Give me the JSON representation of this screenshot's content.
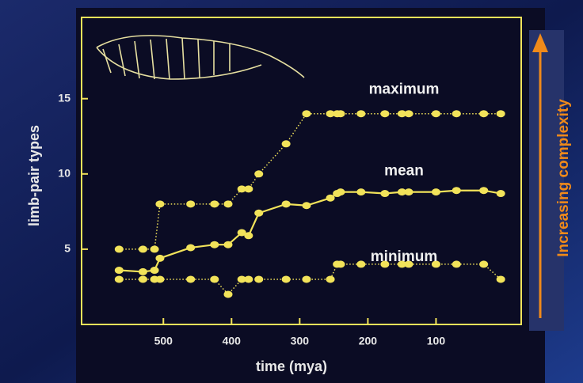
{
  "chart_data": {
    "type": "line",
    "x_label": "time (mya)",
    "y_label": "limb-pair types",
    "x": [
      565,
      530,
      513,
      505,
      460,
      425,
      405,
      385,
      375,
      360,
      320,
      290,
      255,
      245,
      240,
      210,
      175,
      150,
      140,
      100,
      70,
      30,
      5
    ],
    "series": [
      {
        "name": "maximum",
        "color": "#f2e35a",
        "line_style": "dotted",
        "values": [
          5,
          5,
          5,
          8,
          8,
          8,
          8,
          9,
          9,
          10,
          12,
          14,
          14,
          14,
          14,
          14,
          14,
          14,
          14,
          14,
          14,
          14,
          14
        ]
      },
      {
        "name": "mean",
        "color": "#f2e35a",
        "line_style": "solid",
        "values": [
          3.6,
          3.5,
          3.6,
          4.4,
          5.1,
          5.3,
          5.3,
          6.1,
          5.9,
          7.4,
          8,
          7.9,
          8.4,
          8.7,
          8.8,
          8.8,
          8.7,
          8.8,
          8.8,
          8.8,
          8.9,
          8.9,
          8.7
        ]
      },
      {
        "name": "minimum",
        "color": "#f2e35a",
        "line_style": "dotted",
        "values": [
          3,
          3,
          3,
          3,
          3,
          3,
          2,
          3,
          3,
          3,
          3,
          3,
          3,
          4,
          4,
          4,
          4,
          4,
          4,
          4,
          4,
          4,
          3
        ]
      }
    ],
    "xlim": [
      620,
      -25
    ],
    "xticks": [
      500,
      400,
      300,
      200,
      100
    ],
    "ylim": [
      0,
      20.4
    ],
    "yticks": [
      5,
      10,
      15
    ],
    "side_label": "Increasing complexity"
  }
}
